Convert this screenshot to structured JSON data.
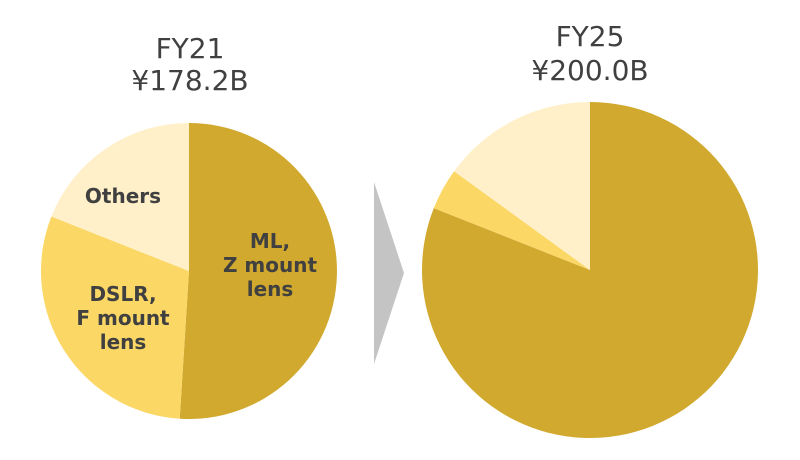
{
  "chart_data": [
    {
      "type": "pie",
      "title": "FY21",
      "subtitle": "¥178.2B",
      "slices": [
        {
          "label": "ML,\nZ mount\nlens",
          "value": 51,
          "color": "#d1a92e"
        },
        {
          "label": "DSLR,\nF mount\nlens",
          "value": 30,
          "color": "#fbd766"
        },
        {
          "label": "Others",
          "value": 19,
          "color": "#fff0c9"
        }
      ]
    },
    {
      "type": "pie",
      "title": "FY25",
      "subtitle": "¥200.0B",
      "slices": [
        {
          "label": "",
          "value": 81,
          "color": "#d1a92e"
        },
        {
          "label": "",
          "value": 4,
          "color": "#fbd766"
        },
        {
          "label": "",
          "value": 15,
          "color": "#fff0c9"
        }
      ]
    }
  ],
  "arrow_color": "#c4c4c4"
}
